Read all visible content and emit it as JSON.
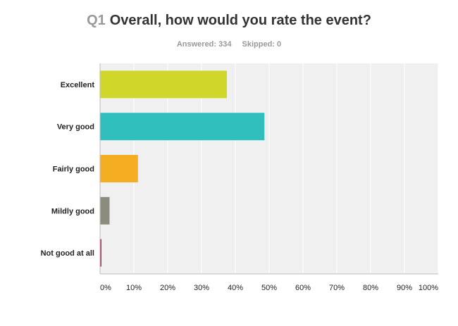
{
  "header": {
    "question_number": "Q1",
    "question_text": "Overall, how would you rate the event?"
  },
  "stats": {
    "answered": "Answered: 334",
    "skipped": "Skipped: 0"
  },
  "chart_data": {
    "type": "bar",
    "orientation": "horizontal",
    "categories": [
      "Excellent",
      "Very good",
      "Fairly good",
      "Mildly good",
      "Not good at all"
    ],
    "values": [
      37.4,
      48.5,
      11.1,
      2.7,
      0.3
    ],
    "colors": [
      "#d0d62a",
      "#31bfbe",
      "#f5ae21",
      "#8c8c7e",
      "#c2185b"
    ],
    "x_ticks": [
      "0%",
      "10%",
      "20%",
      "30%",
      "40%",
      "50%",
      "60%",
      "70%",
      "80%",
      "90%",
      "100%"
    ],
    "xlim": [
      0,
      100
    ],
    "grid": true,
    "plot_background": "#f0f0f0",
    "grid_color": "#ffffff"
  }
}
